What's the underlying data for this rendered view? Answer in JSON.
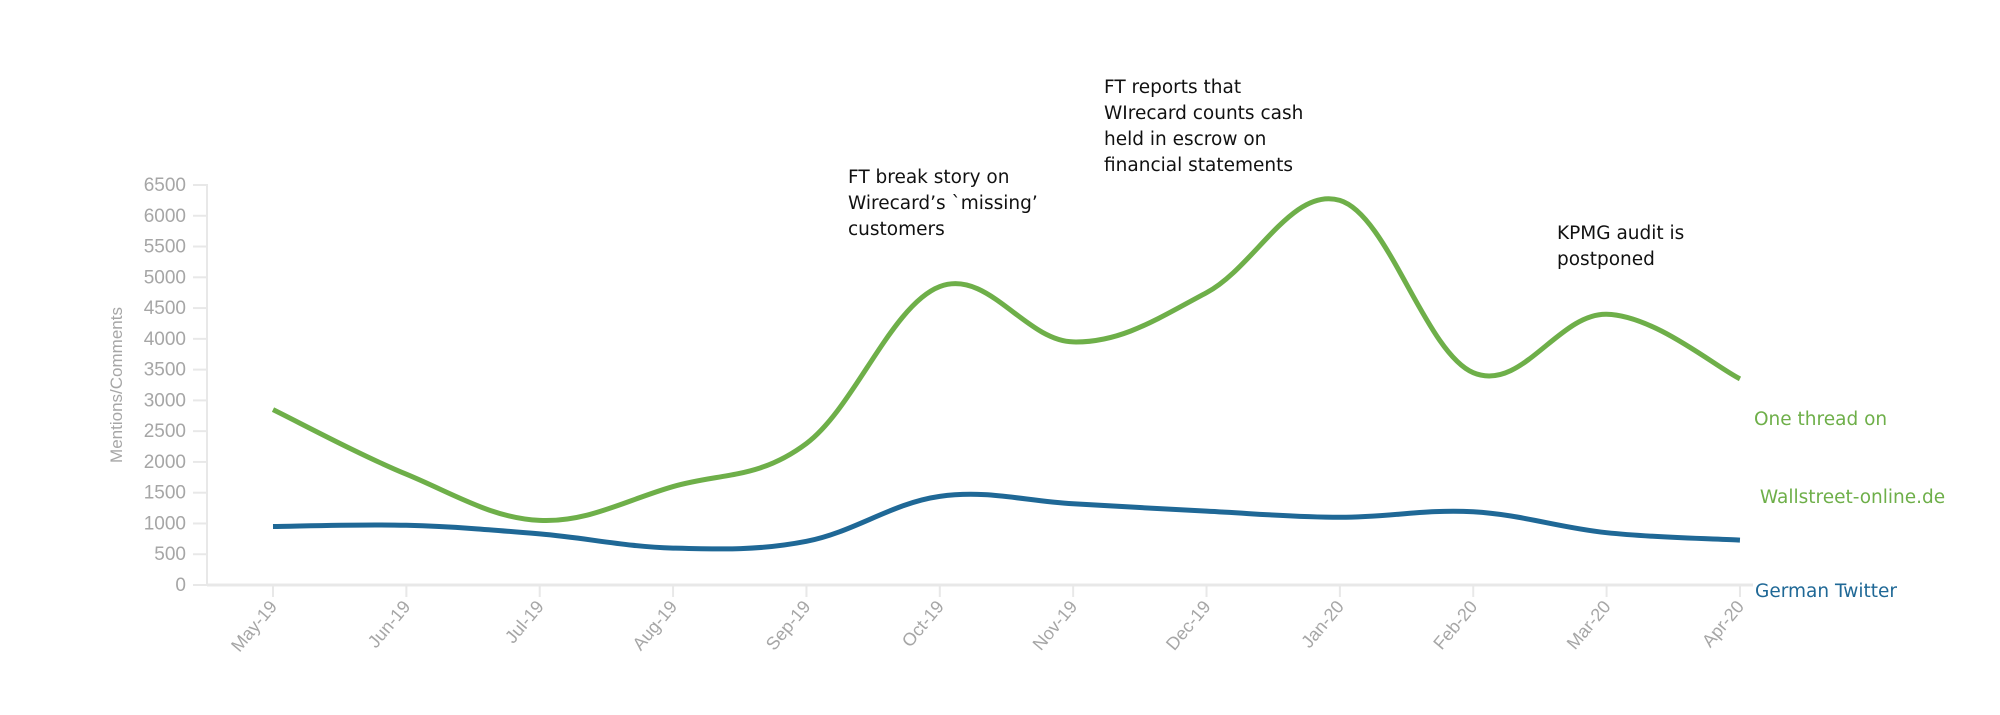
{
  "chart_data": {
    "type": "line",
    "title": "",
    "xlabel": "",
    "ylabel": "Mentions/Comments",
    "ylim": [
      0,
      6500
    ],
    "yticks": [
      0,
      500,
      1000,
      1500,
      2000,
      2500,
      3000,
      3500,
      4000,
      4500,
      5000,
      5500,
      6000,
      6500
    ],
    "ytick_labels": [
      "0",
      "500",
      "1000",
      "1500",
      "2000",
      "2500",
      "3000",
      "3500",
      "4000",
      "4500",
      "5000",
      "5500",
      "6000",
      "6500"
    ],
    "categories": [
      "May-19",
      "Jun-19",
      "Jul-19",
      "Aug-19",
      "Sep-19",
      "Oct-19",
      "Nov-19",
      "Dec-19",
      "Jan-20",
      "Feb-20",
      "Mar-20",
      "Apr-20"
    ],
    "grid": false,
    "legend": "inline-right",
    "series": [
      {
        "name": "One thread on Wallstreet-online.de",
        "label_lines": [
          "One thread on",
          " Wallstreet-online.de"
        ],
        "color": "#6eaf49",
        "values": [
          2850,
          1800,
          1050,
          1600,
          2300,
          4850,
          3950,
          4750,
          6250,
          3450,
          4400,
          3350
        ]
      },
      {
        "name": "German Twitter",
        "label_lines": [
          "German Twitter"
        ],
        "color": "#1f6896",
        "values": [
          950,
          970,
          830,
          600,
          710,
          1440,
          1320,
          1200,
          1100,
          1190,
          850,
          730
        ]
      }
    ],
    "annotations": [
      {
        "category": "Oct-19",
        "lines": [
          "FT break story on",
          "Wirecard’s `missing’",
          "customers"
        ]
      },
      {
        "category": "Jan-20",
        "lines": [
          "FT reports that",
          "WIrecard counts cash",
          "held in escrow on",
          "financial statements"
        ]
      },
      {
        "category": "Mar-20",
        "lines": [
          "KPMG audit is",
          "postponed"
        ]
      }
    ],
    "axis_color": "#e8e8e8",
    "tick_label_color": "#a6a6a6"
  }
}
